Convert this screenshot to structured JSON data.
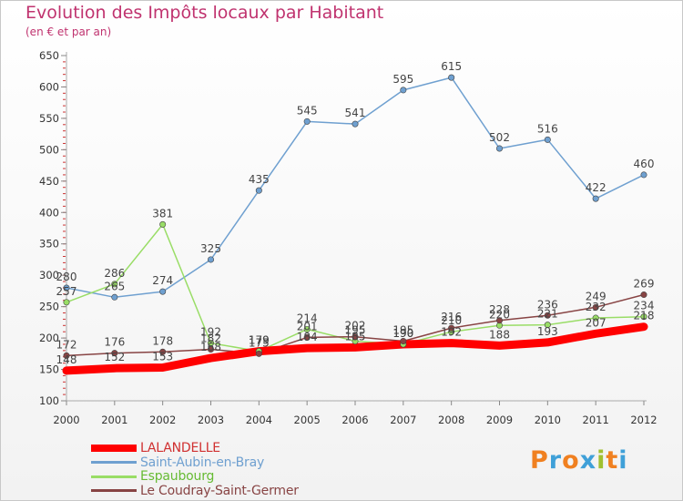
{
  "title": "Evolution des Impôts locaux par Habitant",
  "subtitle": "(en € et par an)",
  "logo": {
    "text": "Proxiti",
    "letters": [
      "P",
      "r",
      "o",
      "x",
      "i",
      "t",
      "i"
    ],
    "colors": [
      "#f08020",
      "#3fa0d8",
      "#f08020",
      "#3fa0d8",
      "#a0c030",
      "#f08020",
      "#3fa0d8"
    ]
  },
  "chart_data": {
    "type": "line",
    "title": "Evolution des Impôts locaux par Habitant",
    "subtitle": "(en € et par an)",
    "xlabel": "",
    "ylabel": "",
    "ylim": [
      100,
      650
    ],
    "yticks": [
      100,
      150,
      200,
      250,
      300,
      350,
      400,
      450,
      500,
      550,
      600,
      650
    ],
    "grid": false,
    "legend_position": "bottom-left",
    "x": [
      "2000",
      "2001",
      "2002",
      "2003",
      "2004",
      "2005",
      "2006",
      "2007",
      "2008",
      "2009",
      "2010",
      "2011",
      "2012"
    ],
    "series": [
      {
        "name": "LALANDELLE",
        "color": "#ff0000",
        "width": 9,
        "values": [
          148,
          152,
          153,
          168,
          179,
          184,
          185,
          190,
          192,
          188,
          193,
          207,
          218
        ],
        "labels": [
          "148",
          "152",
          "153",
          "168",
          "179",
          "184",
          "185",
          "190",
          "192",
          "188",
          "193",
          "207",
          "218"
        ]
      },
      {
        "name": "Saint-Aubin-en-Bray",
        "color": "#6fa0d0",
        "width": 1.5,
        "values": [
          280,
          265,
          274,
          325,
          435,
          545,
          541,
          595,
          615,
          502,
          516,
          422,
          460
        ],
        "labels": [
          "280",
          "265",
          "274",
          "325",
          "435",
          "545",
          "541",
          "595",
          "615",
          "502",
          "516",
          "422",
          "460"
        ]
      },
      {
        "name": "Espaubourg",
        "color": "#99dd66",
        "width": 1.5,
        "values": [
          257,
          286,
          381,
          192,
          179,
          214,
          195,
          190,
          210,
          220,
          221,
          232,
          234
        ],
        "labels": [
          "257",
          "286",
          "381",
          "192",
          "179",
          "214",
          "195",
          "190",
          "210",
          "220",
          "221",
          "232",
          "234"
        ]
      },
      {
        "name": "Le Coudray-Saint-Germer",
        "color": "#884444",
        "width": 1.5,
        "values": [
          172,
          176,
          178,
          182,
          175,
          201,
          202,
          195,
          216,
          228,
          236,
          249,
          269
        ],
        "labels": [
          "172",
          "176",
          "178",
          "182",
          "175",
          "201",
          "202",
          "195",
          "216",
          "228",
          "236",
          "249",
          "269"
        ]
      }
    ]
  }
}
